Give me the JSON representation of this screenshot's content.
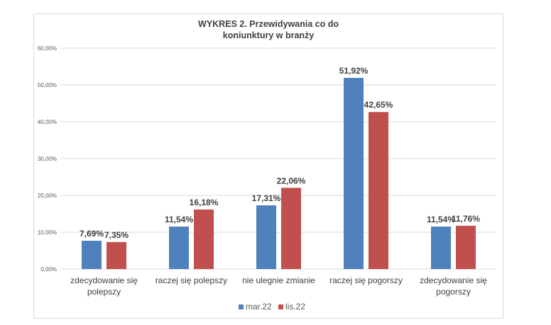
{
  "chart_data": {
    "type": "bar",
    "title": [
      "WYKRES 2. Przewidywania co do",
      "koniunktury w branży"
    ],
    "xlabel": "",
    "ylabel": "",
    "ylim": [
      0,
      60
    ],
    "yticks": [
      0,
      10,
      20,
      30,
      40,
      50,
      60
    ],
    "ytick_labels": [
      "0,00%",
      "10,00%",
      "20,00%",
      "30,00%",
      "40,00%",
      "50,00%",
      "60,00%"
    ],
    "grid": true,
    "legend_position": "bottom",
    "categories": [
      [
        "zdecydowanie się",
        "polepszy"
      ],
      [
        "raczej się polepszy"
      ],
      [
        "nie ulegnie zmianie"
      ],
      [
        "raczej się pogorszy"
      ],
      [
        "zdecydowanie się",
        "pogorszy"
      ]
    ],
    "series": [
      {
        "name": "mar.22",
        "color": "#4f81bd",
        "values": [
          7.69,
          11.54,
          17.31,
          51.92,
          11.54
        ],
        "labels": [
          "7,69%",
          "11,54%",
          "17,31%",
          "51,92%",
          "11,54%"
        ]
      },
      {
        "name": "lis.22",
        "color": "#c0504d",
        "values": [
          7.35,
          16.18,
          22.06,
          42.65,
          11.76
        ],
        "labels": [
          "7,35%",
          "16,18%",
          "22,06%",
          "42,65%",
          "11,76%"
        ]
      }
    ]
  }
}
